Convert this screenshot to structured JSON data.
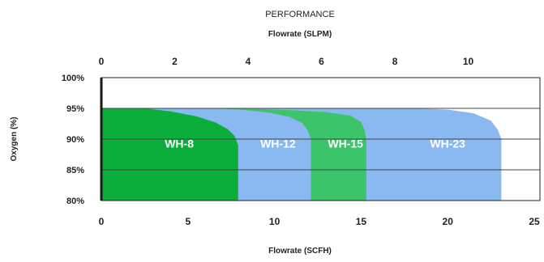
{
  "chart_data": {
    "type": "area",
    "title": "PERFORMANCE",
    "top_axis": {
      "label": "Flowrate (SLPM)",
      "ticks": [
        0,
        2,
        4,
        6,
        8,
        10
      ],
      "range": [
        0,
        11.8
      ]
    },
    "bottom_axis": {
      "label": "Flowrate (SCFH)",
      "ticks": [
        0,
        5,
        10,
        15,
        20,
        25
      ],
      "range": [
        0,
        25
      ]
    },
    "y_axis": {
      "label": "Oxygen (%)",
      "ticks": [
        "80%",
        "85%",
        "90%",
        "95%",
        "100%"
      ],
      "tick_values": [
        80,
        85,
        90,
        95,
        100
      ],
      "range": [
        80,
        100
      ]
    },
    "grid": true,
    "series": [
      {
        "name": "WH-23",
        "color": "#8ab8f0",
        "label_at": {
          "x": 20,
          "y": 88.6
        },
        "points": [
          [
            0,
            95
          ],
          [
            18,
            95
          ],
          [
            20,
            94.8
          ],
          [
            21.5,
            94.2
          ],
          [
            22.5,
            93
          ],
          [
            22.9,
            91.5
          ],
          [
            23.1,
            90
          ],
          [
            23.1,
            80
          ]
        ]
      },
      {
        "name": "WH-15",
        "color": "#3cc46a",
        "label_at": {
          "x": 14.1,
          "y": 88.6
        },
        "points": [
          [
            0,
            95
          ],
          [
            6,
            95
          ],
          [
            9,
            94.9
          ],
          [
            11,
            94.7
          ],
          [
            13,
            94.4
          ],
          [
            14.4,
            93.8
          ],
          [
            15,
            92.8
          ],
          [
            15.2,
            91.5
          ],
          [
            15.3,
            90
          ],
          [
            15.3,
            80
          ]
        ]
      },
      {
        "name": "WH-12",
        "color": "#8ab8f0",
        "label_at": {
          "x": 10.2,
          "y": 88.6
        },
        "points": [
          [
            0,
            95
          ],
          [
            6,
            95
          ],
          [
            8,
            94.8
          ],
          [
            9.7,
            94.3
          ],
          [
            10.9,
            93.6
          ],
          [
            11.6,
            92.6
          ],
          [
            11.9,
            91.5
          ],
          [
            12.1,
            90
          ],
          [
            12.1,
            80
          ]
        ]
      },
      {
        "name": "WH-8",
        "color": "#0bae3a",
        "label_at": {
          "x": 4.5,
          "y": 88.6
        },
        "points": [
          [
            0,
            95
          ],
          [
            2.5,
            95
          ],
          [
            4,
            94.5
          ],
          [
            5.5,
            93.7
          ],
          [
            6.6,
            92.7
          ],
          [
            7.3,
            91.6
          ],
          [
            7.7,
            90.5
          ],
          [
            7.9,
            89
          ],
          [
            7.9,
            80
          ]
        ]
      }
    ]
  }
}
